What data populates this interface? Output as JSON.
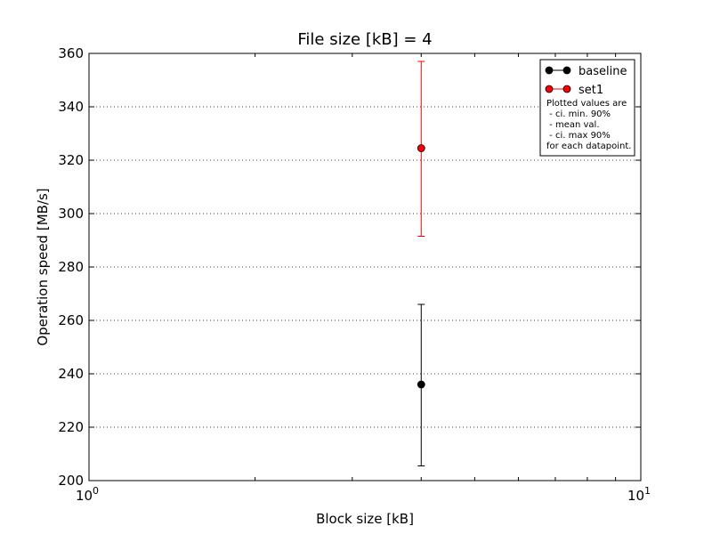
{
  "chart_data": {
    "type": "scatter",
    "title": "File size [kB] = 4",
    "xlabel": "Block size [kB]",
    "ylabel": "Operation speed [MB/s]",
    "xscale": "log",
    "xlim": [
      1,
      10
    ],
    "ylim": [
      200,
      360
    ],
    "x_ticks": [
      {
        "value": 1,
        "base": "10",
        "exp": "0"
      },
      {
        "value": 10,
        "base": "10",
        "exp": "1"
      }
    ],
    "y_ticks": [
      200,
      220,
      240,
      260,
      280,
      300,
      320,
      340,
      360
    ],
    "grid": "y-dotted",
    "legend_position": "top-right",
    "series": [
      {
        "name": "baseline",
        "color": "#000000",
        "x": [
          4
        ],
        "y": [
          236
        ],
        "ci_min": [
          205.5
        ],
        "ci_max": [
          266
        ]
      },
      {
        "name": "set1",
        "color": "#ff0000",
        "x": [
          4
        ],
        "y": [
          324.5
        ],
        "ci_min": [
          291.5
        ],
        "ci_max": [
          357
        ]
      }
    ],
    "legend_note": [
      "Plotted values are",
      " - ci. min. 90%",
      " - mean val.",
      " - ci. max 90%",
      "for each datapoint."
    ]
  }
}
